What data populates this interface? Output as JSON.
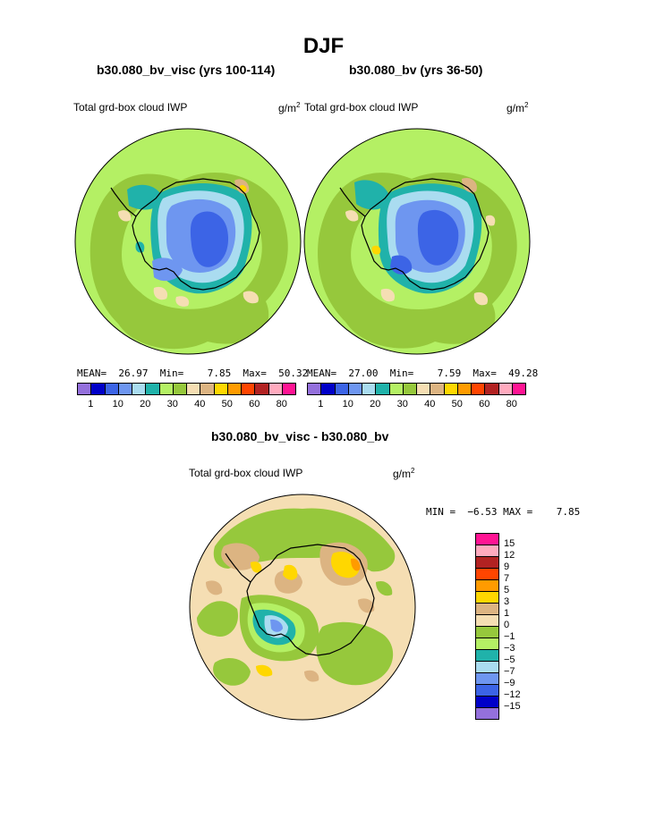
{
  "main_title": "DJF",
  "panels": [
    {
      "title": "b30.080_bv_visc (yrs 100-114)",
      "variable": "Total grd-box cloud IWP",
      "units_base": "g/m",
      "units_exp": "2",
      "stats": "MEAN=  26.97  Min=    7.85  Max=  50.32"
    },
    {
      "title": "b30.080_bv (yrs 36-50)",
      "variable": "Total grd-box cloud IWP",
      "units_base": "g/m",
      "units_exp": "2",
      "stats": "MEAN=  27.00  Min=    7.59  Max=  49.28"
    }
  ],
  "diff": {
    "title": "b30.080_bv_visc - b30.080_bv",
    "variable": "Total grd-box cloud IWP",
    "units_base": "g/m",
    "units_exp": "2",
    "stats": "MIN =  −6.53 MAX =    7.85"
  },
  "colorbar_main": {
    "colors": [
      "#9470dc",
      "#0000c8",
      "#3c64e6",
      "#6e96f0",
      "#aadcf0",
      "#20b2aa",
      "#b4f064",
      "#96c83c",
      "#f5deb3",
      "#dcb482",
      "#ffd700",
      "#ff9b00",
      "#ff4500",
      "#b22222",
      "#ffaabe",
      "#ff1493"
    ],
    "labels": [
      "1",
      "10",
      "20",
      "30",
      "40",
      "50",
      "60",
      "80"
    ]
  },
  "colorbar_diff": {
    "colors": [
      "#ff1493",
      "#ffaabe",
      "#b22222",
      "#ff4500",
      "#ff9b00",
      "#ffd700",
      "#dcb482",
      "#f5deb3",
      "#96c83c",
      "#b4f064",
      "#20b2aa",
      "#aadcf0",
      "#6e96f0",
      "#3c64e6",
      "#0000c8",
      "#9470dc"
    ],
    "labels": [
      "15",
      "12",
      "9",
      "7",
      "5",
      "3",
      "1",
      "0",
      "−1",
      "−3",
      "−5",
      "−7",
      "−9",
      "−12",
      "−15"
    ]
  }
}
